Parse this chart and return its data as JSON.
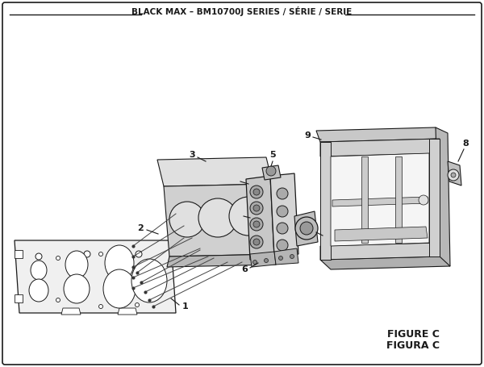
{
  "title": "BLACK MAX – BM10700J SERIES / SÉRIE / SERIE",
  "figure_label": "FIGURE C",
  "figura_label": "FIGURA C",
  "bg_color": "#ffffff",
  "line_color": "#1a1a1a",
  "part_fill": "#f0f0f0",
  "part_edge": "#1a1a1a",
  "dark_fill": "#d0d0d0",
  "mid_fill": "#e0e0e0"
}
